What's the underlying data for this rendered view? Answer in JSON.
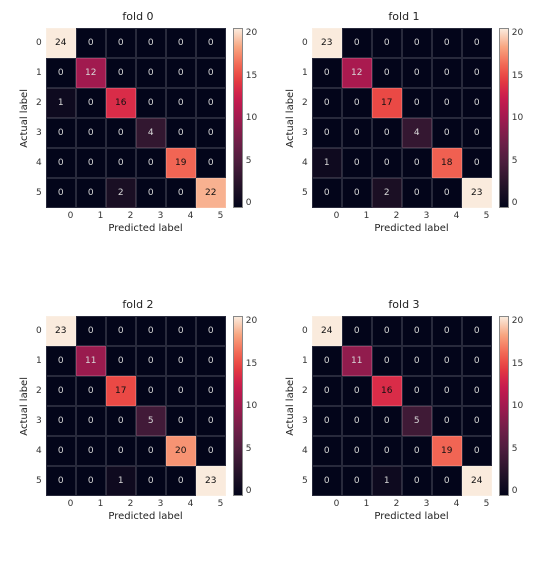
{
  "global": {
    "rows": 6,
    "cols": 6,
    "xlabel": "Predicted label",
    "ylabel": "Actual label",
    "tick_labels": [
      "0",
      "1",
      "2",
      "3",
      "4",
      "5"
    ],
    "title_fontsize": 11,
    "label_fontsize": 10,
    "tick_fontsize": 9,
    "cell_fontsize": 9,
    "background_color": "#ffffff",
    "cell_darktext": "#111111",
    "cell_lighttext": "#d8d8d8",
    "colormap": "rocket",
    "colormap_stops": [
      {
        "t": 0.0,
        "c": "#03051a"
      },
      {
        "t": 0.12,
        "c": "#241328"
      },
      {
        "t": 0.25,
        "c": "#4b1d3d"
      },
      {
        "t": 0.37,
        "c": "#701f49"
      },
      {
        "t": 0.5,
        "c": "#a11a4f"
      },
      {
        "t": 0.62,
        "c": "#cb1b4f"
      },
      {
        "t": 0.72,
        "c": "#e83f3f"
      },
      {
        "t": 0.82,
        "c": "#f4745c"
      },
      {
        "t": 0.9,
        "c": "#f8a681"
      },
      {
        "t": 1.0,
        "c": "#faebdd"
      }
    ],
    "cbar_ticks": [
      "20",
      "15",
      "10",
      "5",
      "0"
    ]
  },
  "panels": [
    {
      "title": "fold 0",
      "vmin": 0,
      "vmax": 24,
      "matrix": [
        [
          24,
          0,
          0,
          0,
          0,
          0
        ],
        [
          0,
          12,
          0,
          0,
          0,
          0
        ],
        [
          1,
          0,
          16,
          0,
          0,
          0
        ],
        [
          0,
          0,
          0,
          4,
          0,
          0
        ],
        [
          0,
          0,
          0,
          0,
          19,
          0
        ],
        [
          0,
          0,
          2,
          0,
          0,
          22
        ]
      ]
    },
    {
      "title": "fold 1",
      "vmin": 0,
      "vmax": 23,
      "matrix": [
        [
          23,
          0,
          0,
          0,
          0,
          0
        ],
        [
          0,
          12,
          0,
          0,
          0,
          0
        ],
        [
          0,
          0,
          17,
          0,
          0,
          0
        ],
        [
          0,
          0,
          0,
          4,
          0,
          0
        ],
        [
          1,
          0,
          0,
          0,
          18,
          0
        ],
        [
          0,
          0,
          2,
          0,
          0,
          23
        ]
      ]
    },
    {
      "title": "fold 2",
      "vmin": 0,
      "vmax": 23,
      "matrix": [
        [
          23,
          0,
          0,
          0,
          0,
          0
        ],
        [
          0,
          11,
          0,
          0,
          0,
          0
        ],
        [
          0,
          0,
          17,
          0,
          0,
          0
        ],
        [
          0,
          0,
          0,
          5,
          0,
          0
        ],
        [
          0,
          0,
          0,
          0,
          20,
          0
        ],
        [
          0,
          0,
          1,
          0,
          0,
          23
        ]
      ]
    },
    {
      "title": "fold 3",
      "vmin": 0,
      "vmax": 24,
      "matrix": [
        [
          24,
          0,
          0,
          0,
          0,
          0
        ],
        [
          0,
          11,
          0,
          0,
          0,
          0
        ],
        [
          0,
          0,
          16,
          0,
          0,
          0
        ],
        [
          0,
          0,
          0,
          5,
          0,
          0
        ],
        [
          0,
          0,
          0,
          0,
          19,
          0
        ],
        [
          0,
          0,
          1,
          0,
          0,
          24
        ]
      ]
    }
  ]
}
